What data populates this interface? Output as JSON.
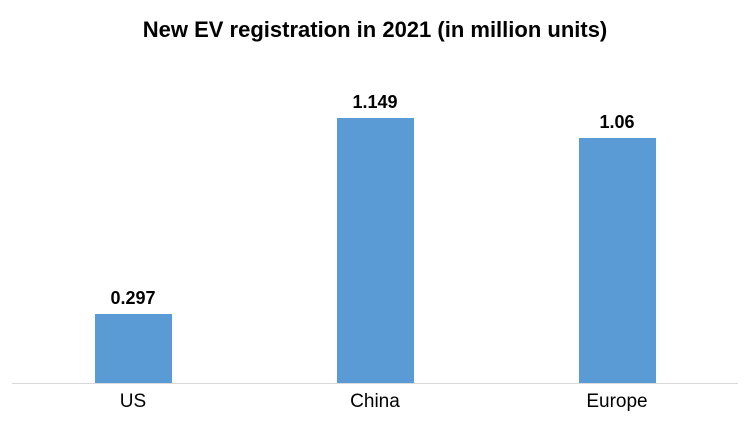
{
  "chart_data": {
    "type": "bar",
    "title": "New EV registration in 2021 (in million units)",
    "categories": [
      "US",
      "China",
      "Europe"
    ],
    "values": [
      0.297,
      1.149,
      1.06
    ],
    "data_labels": [
      "0.297",
      "1.149",
      "1.06"
    ],
    "xlabel": "",
    "ylabel": "",
    "ylim": [
      0,
      1.4
    ],
    "grid": false,
    "legend": false,
    "y_axis_visible": false,
    "bar_color": "#5B9BD5",
    "axis_line_color": "#D9D9D9",
    "text_color": "#000000",
    "background_color": "#FFFFFF"
  }
}
